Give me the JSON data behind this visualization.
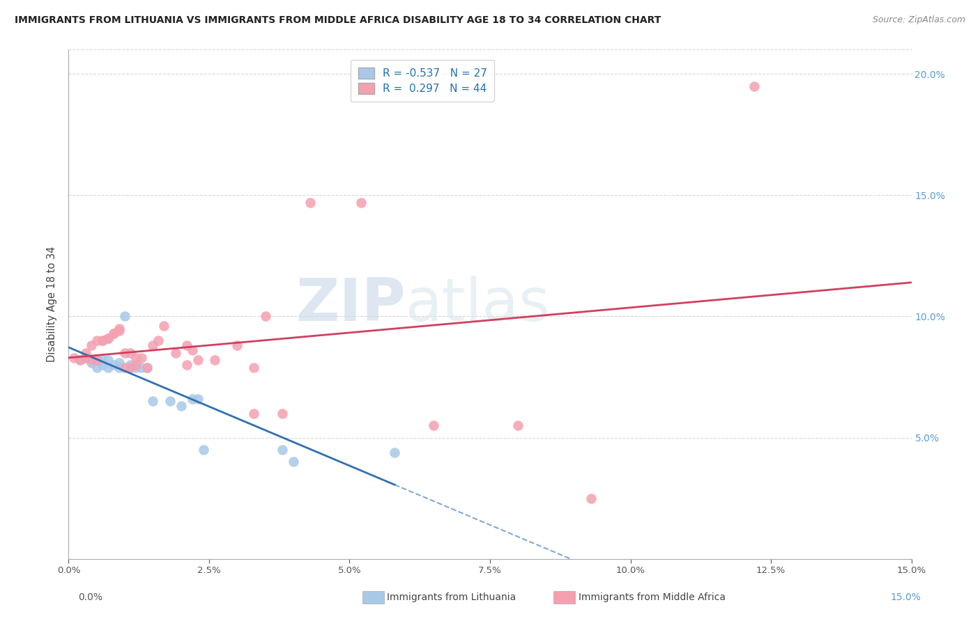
{
  "title": "IMMIGRANTS FROM LITHUANIA VS IMMIGRANTS FROM MIDDLE AFRICA DISABILITY AGE 18 TO 34 CORRELATION CHART",
  "source": "Source: ZipAtlas.com",
  "ylabel": "Disability Age 18 to 34",
  "xlim": [
    0.0,
    0.15
  ],
  "ylim": [
    0.0,
    0.21
  ],
  "xticks": [
    0.0,
    0.025,
    0.05,
    0.075,
    0.1,
    0.125,
    0.15
  ],
  "yticks_right": [
    0.05,
    0.1,
    0.15,
    0.2
  ],
  "legend_R_blue": "-0.537",
  "legend_N_blue": "27",
  "legend_R_pink": "0.297",
  "legend_N_pink": "44",
  "blue_color": "#a8c8e8",
  "pink_color": "#f4a0b0",
  "blue_line_color": "#3070b0",
  "pink_line_color": "#d04060",
  "blue_scatter": [
    [
      0.002,
      0.082
    ],
    [
      0.003,
      0.083
    ],
    [
      0.004,
      0.081
    ],
    [
      0.005,
      0.082
    ],
    [
      0.005,
      0.079
    ],
    [
      0.006,
      0.082
    ],
    [
      0.006,
      0.08
    ],
    [
      0.007,
      0.082
    ],
    [
      0.007,
      0.079
    ],
    [
      0.008,
      0.08
    ],
    [
      0.009,
      0.081
    ],
    [
      0.009,
      0.079
    ],
    [
      0.01,
      0.1
    ],
    [
      0.011,
      0.079
    ],
    [
      0.011,
      0.08
    ],
    [
      0.012,
      0.079
    ],
    [
      0.013,
      0.079
    ],
    [
      0.014,
      0.079
    ],
    [
      0.015,
      0.065
    ],
    [
      0.018,
      0.065
    ],
    [
      0.02,
      0.063
    ],
    [
      0.022,
      0.066
    ],
    [
      0.023,
      0.066
    ],
    [
      0.024,
      0.045
    ],
    [
      0.038,
      0.045
    ],
    [
      0.04,
      0.04
    ],
    [
      0.058,
      0.044
    ]
  ],
  "pink_scatter": [
    [
      0.001,
      0.083
    ],
    [
      0.002,
      0.082
    ],
    [
      0.003,
      0.085
    ],
    [
      0.003,
      0.083
    ],
    [
      0.004,
      0.088
    ],
    [
      0.004,
      0.082
    ],
    [
      0.005,
      0.082
    ],
    [
      0.005,
      0.09
    ],
    [
      0.006,
      0.09
    ],
    [
      0.006,
      0.09
    ],
    [
      0.007,
      0.091
    ],
    [
      0.007,
      0.091
    ],
    [
      0.008,
      0.093
    ],
    [
      0.008,
      0.093
    ],
    [
      0.009,
      0.095
    ],
    [
      0.009,
      0.094
    ],
    [
      0.01,
      0.079
    ],
    [
      0.01,
      0.085
    ],
    [
      0.011,
      0.079
    ],
    [
      0.011,
      0.085
    ],
    [
      0.012,
      0.08
    ],
    [
      0.012,
      0.083
    ],
    [
      0.013,
      0.083
    ],
    [
      0.014,
      0.079
    ],
    [
      0.015,
      0.088
    ],
    [
      0.016,
      0.09
    ],
    [
      0.017,
      0.096
    ],
    [
      0.019,
      0.085
    ],
    [
      0.021,
      0.088
    ],
    [
      0.021,
      0.08
    ],
    [
      0.022,
      0.086
    ],
    [
      0.023,
      0.082
    ],
    [
      0.026,
      0.082
    ],
    [
      0.03,
      0.088
    ],
    [
      0.033,
      0.079
    ],
    [
      0.033,
      0.06
    ],
    [
      0.035,
      0.1
    ],
    [
      0.038,
      0.06
    ],
    [
      0.043,
      0.147
    ],
    [
      0.052,
      0.147
    ],
    [
      0.065,
      0.055
    ],
    [
      0.08,
      0.055
    ],
    [
      0.093,
      0.025
    ],
    [
      0.122,
      0.195
    ]
  ],
  "watermark_zip": "ZIP",
  "watermark_atlas": "atlas",
  "background_color": "#ffffff",
  "grid_color": "#d8d8d8",
  "legend_label_blue": "Immigrants from Lithuania",
  "legend_label_pink": "Immigrants from Middle Africa"
}
